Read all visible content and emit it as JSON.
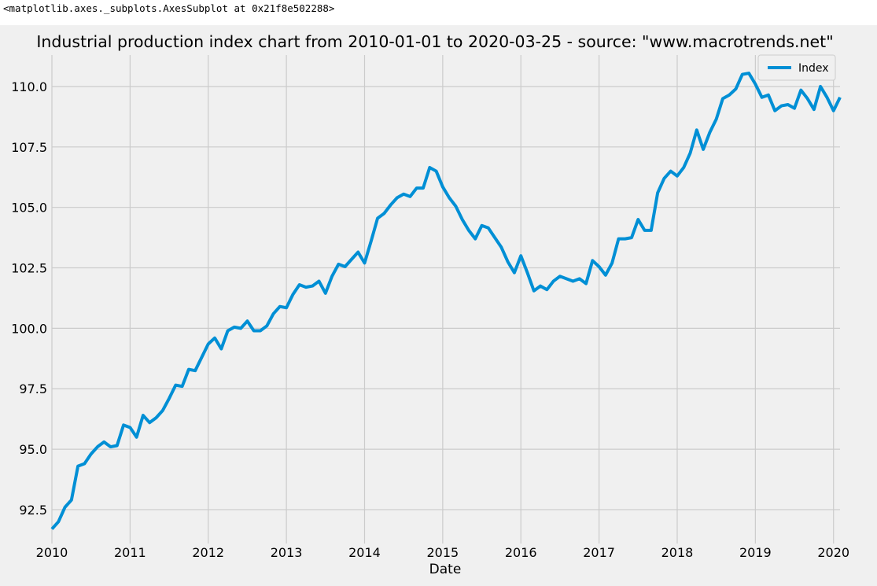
{
  "output_repr": "<matplotlib.axes._subplots.AxesSubplot at 0x21f8e502288>",
  "colors": {
    "figure_background": "#f0f0f0",
    "grid": "#cbcbcb",
    "line": "#008fd5",
    "legend_background": "#f0f0f0",
    "legend_border": "#cccccc"
  },
  "chart_data": {
    "type": "line",
    "title": "Industrial production index chart from 2010-01-01 to 2020-03-25 - source: \"www.macrotrends.net\"",
    "xlabel": "Date",
    "ylabel": "",
    "grid": true,
    "legend_position": "top-right",
    "xlim": [
      "2010-01",
      "2020-02"
    ],
    "ylim": [
      91.1,
      111.3
    ],
    "x_ticks": [
      "2010",
      "2011",
      "2012",
      "2013",
      "2014",
      "2015",
      "2016",
      "2017",
      "2018",
      "2019",
      "2020"
    ],
    "y_ticks": [
      "92.5",
      "95.0",
      "97.5",
      "100.0",
      "102.5",
      "105.0",
      "107.5",
      "110.0"
    ],
    "series": [
      {
        "name": "Index",
        "x": [
          "2010-01",
          "2010-02",
          "2010-03",
          "2010-04",
          "2010-05",
          "2010-06",
          "2010-07",
          "2010-08",
          "2010-09",
          "2010-10",
          "2010-11",
          "2010-12",
          "2011-01",
          "2011-02",
          "2011-03",
          "2011-04",
          "2011-05",
          "2011-06",
          "2011-07",
          "2011-08",
          "2011-09",
          "2011-10",
          "2011-11",
          "2011-12",
          "2012-01",
          "2012-02",
          "2012-03",
          "2012-04",
          "2012-05",
          "2012-06",
          "2012-07",
          "2012-08",
          "2012-09",
          "2012-10",
          "2012-11",
          "2012-12",
          "2013-01",
          "2013-02",
          "2013-03",
          "2013-04",
          "2013-05",
          "2013-06",
          "2013-07",
          "2013-08",
          "2013-09",
          "2013-10",
          "2013-11",
          "2013-12",
          "2014-01",
          "2014-02",
          "2014-03",
          "2014-04",
          "2014-05",
          "2014-06",
          "2014-07",
          "2014-08",
          "2014-09",
          "2014-10",
          "2014-11",
          "2014-12",
          "2015-01",
          "2015-02",
          "2015-03",
          "2015-04",
          "2015-05",
          "2015-06",
          "2015-07",
          "2015-08",
          "2015-09",
          "2015-10",
          "2015-11",
          "2015-12",
          "2016-01",
          "2016-02",
          "2016-03",
          "2016-04",
          "2016-05",
          "2016-06",
          "2016-07",
          "2016-08",
          "2016-09",
          "2016-10",
          "2016-11",
          "2016-12",
          "2017-01",
          "2017-02",
          "2017-03",
          "2017-04",
          "2017-05",
          "2017-06",
          "2017-07",
          "2017-08",
          "2017-09",
          "2017-10",
          "2017-11",
          "2017-12",
          "2018-01",
          "2018-02",
          "2018-03",
          "2018-04",
          "2018-05",
          "2018-06",
          "2018-07",
          "2018-08",
          "2018-09",
          "2018-10",
          "2018-11",
          "2018-12",
          "2019-01",
          "2019-02",
          "2019-03",
          "2019-04",
          "2019-05",
          "2019-06",
          "2019-07",
          "2019-08",
          "2019-09",
          "2019-10",
          "2019-11",
          "2019-12",
          "2020-01",
          "2020-02"
        ],
        "values": [
          91.7,
          92.0,
          92.6,
          92.9,
          94.3,
          94.4,
          94.8,
          95.1,
          95.3,
          95.1,
          95.15,
          96.0,
          95.9,
          95.5,
          96.4,
          96.1,
          96.3,
          96.6,
          97.1,
          97.65,
          97.6,
          98.3,
          98.25,
          98.8,
          99.35,
          99.6,
          99.15,
          99.9,
          100.05,
          100.0,
          100.3,
          99.9,
          99.9,
          100.1,
          100.6,
          100.9,
          100.85,
          101.4,
          101.8,
          101.7,
          101.75,
          101.95,
          101.45,
          102.15,
          102.65,
          102.55,
          102.85,
          103.15,
          102.7,
          103.6,
          104.55,
          104.75,
          105.1,
          105.4,
          105.55,
          105.45,
          105.8,
          105.8,
          106.65,
          106.5,
          105.85,
          105.4,
          105.05,
          104.5,
          104.05,
          103.7,
          104.25,
          104.15,
          103.75,
          103.35,
          102.75,
          102.3,
          103.0,
          102.3,
          101.55,
          101.75,
          101.6,
          101.95,
          102.15,
          102.05,
          101.95,
          102.05,
          101.85,
          102.8,
          102.55,
          102.2,
          102.7,
          103.7,
          103.7,
          103.75,
          104.5,
          104.05,
          104.05,
          105.6,
          106.2,
          106.5,
          106.3,
          106.65,
          107.25,
          108.2,
          107.4,
          108.1,
          108.65,
          109.5,
          109.65,
          109.9,
          110.5,
          110.55,
          110.1,
          109.55,
          109.65,
          109.0,
          109.2,
          109.25,
          109.1,
          109.85,
          109.5,
          109.05,
          110.0,
          109.55,
          109.0,
          109.55
        ]
      }
    ]
  }
}
